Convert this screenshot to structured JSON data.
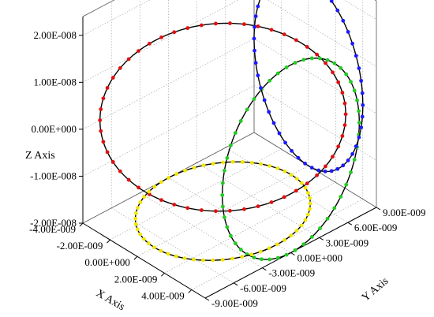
{
  "chart_data": {
    "type": "line",
    "title": "",
    "projection": "3d",
    "axes": {
      "x": {
        "label": "X Axis",
        "range": [
          -4e-09,
          5e-09
        ],
        "ticks": [
          "-4.00E-009",
          "-2.00E-009",
          "0.00E+000",
          "2.00E-009",
          "4.00E-009"
        ]
      },
      "y": {
        "label": "Y Axis",
        "range": [
          -9e-09,
          9e-09
        ],
        "ticks": [
          "-9.00E-009",
          "-6.00E-009",
          "-3.00E-009",
          "0.00E+000",
          "3.00E-009",
          "6.00E-009",
          "9.00E-009"
        ]
      },
      "z": {
        "label": "Z Axis",
        "range": [
          -2e-08,
          2.4e-08
        ],
        "ticks": [
          "-2.00E-008",
          "-1.00E-008",
          "0.00E+000",
          "1.00E-008",
          "2.00E-008"
        ]
      }
    },
    "grid": true,
    "series": [
      {
        "id": "trajectory-3d",
        "color": "#000000",
        "marker_color": "#e01010",
        "center": [
          0,
          0,
          0
        ],
        "radius_xy": [
          4e-09,
          7.2e-09
        ],
        "radius_z": 2e-08,
        "marker_count": 54
      },
      {
        "id": "projection-yz",
        "color": "#000000",
        "marker_color": "#20cc20",
        "center": [
          5e-09,
          0,
          0
        ],
        "radius_xy": [
          0,
          7.2e-09
        ],
        "radius_z": 2e-08,
        "marker_count": 50
      },
      {
        "id": "projection-xz",
        "color": "#000000",
        "marker_color": "#1a1aff",
        "center": [
          0,
          9e-09,
          0
        ],
        "radius_xy": [
          4e-09,
          0
        ],
        "radius_z": 2e-08,
        "marker_count": 50
      },
      {
        "id": "projection-xy",
        "color": "#000000",
        "marker_color": "#f2e600",
        "center": [
          0,
          0,
          -2e-08
        ],
        "radius_xy": [
          4e-09,
          7.2e-09
        ],
        "radius_z": 0,
        "marker_count": 56
      }
    ]
  }
}
